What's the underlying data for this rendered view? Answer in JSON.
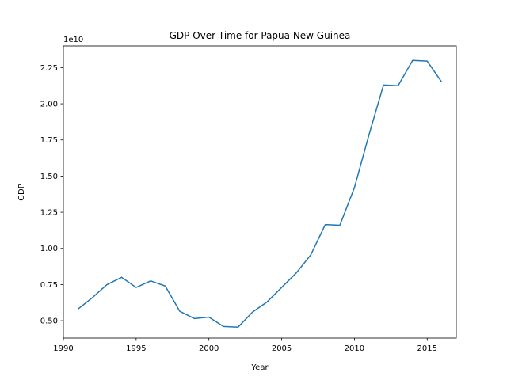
{
  "chart_data": {
    "type": "line",
    "title": "GDP Over Time for Papua New Guinea",
    "xlabel": "Year",
    "ylabel": "GDP",
    "y_offset_label": "1e10",
    "xlim": [
      1990,
      2017
    ],
    "ylim": [
      3800000000.0,
      24000000000.0
    ],
    "x_ticks": [
      1990,
      1995,
      2000,
      2005,
      2010,
      2015
    ],
    "y_ticks": [
      0.5,
      0.75,
      1.0,
      1.25,
      1.5,
      1.75,
      2.0,
      2.25
    ],
    "y_tick_labels": [
      "0.50",
      "0.75",
      "1.00",
      "1.25",
      "1.50",
      "1.75",
      "2.00",
      "2.25"
    ],
    "y_tick_scale": 10000000000.0,
    "grid": false,
    "series": [
      {
        "color": "#1f77b4",
        "x": [
          1991,
          1992,
          1993,
          1994,
          1995,
          1996,
          1997,
          1998,
          1999,
          2000,
          2001,
          2002,
          2003,
          2004,
          2005,
          2006,
          2007,
          2008,
          2009,
          2010,
          2011,
          2012,
          2013,
          2014,
          2015,
          2016
        ],
        "y": [
          5800000000.0,
          6600000000.0,
          7500000000.0,
          8000000000.0,
          7300000000.0,
          7750000000.0,
          7400000000.0,
          5650000000.0,
          5150000000.0,
          5250000000.0,
          4600000000.0,
          4550000000.0,
          5600000000.0,
          6300000000.0,
          7300000000.0,
          8300000000.0,
          9550000000.0,
          11650000000.0,
          11600000000.0,
          14200000000.0,
          17850000000.0,
          21300000000.0,
          21250000000.0,
          23000000000.0,
          22950000000.0,
          21500000000.0
        ]
      }
    ]
  }
}
